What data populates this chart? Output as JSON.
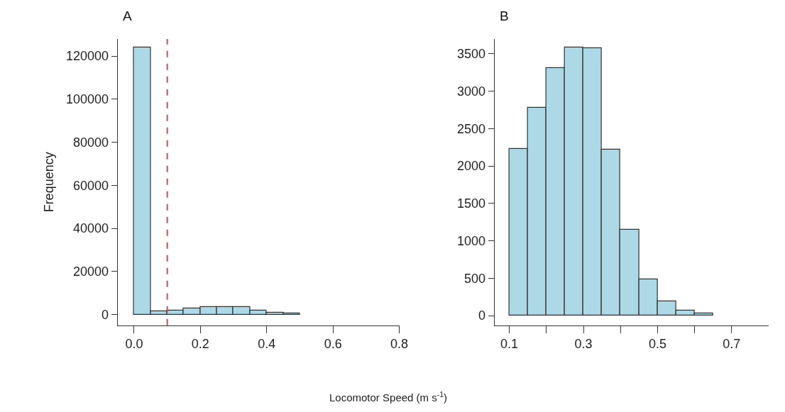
{
  "chart_data": [
    {
      "type": "histogram",
      "title": "A",
      "ylabel": "Frequency",
      "bins": [
        0,
        0.05,
        0.1,
        0.15,
        0.2,
        0.25,
        0.3,
        0.35,
        0.4,
        0.45,
        0.5
      ],
      "values": [
        124000,
        1500,
        2000,
        3000,
        3500,
        3500,
        3500,
        2000,
        1000,
        500
      ],
      "color": "#add8e6",
      "xlim": [
        -0.05,
        0.8
      ],
      "xticks": [
        {
          "value": 0,
          "label": "0.0"
        },
        0.2,
        0.4,
        0.6,
        0.8
      ],
      "ylim": [
        -5000,
        128000
      ],
      "yticks": [
        0,
        20000,
        40000,
        60000,
        80000,
        100000,
        120000
      ],
      "ref_lines": [
        {
          "axis": "x",
          "value": 0.1,
          "color": "#c0506a",
          "line_style": "dashed"
        }
      ]
    },
    {
      "type": "histogram",
      "title": "B",
      "xlabel": "Locomotor Speed (m s$^{-1}$)",
      "bins": [
        0.1,
        0.15,
        0.2,
        0.25,
        0.3,
        0.35,
        0.4,
        0.45,
        0.5,
        0.55,
        0.6,
        0.65
      ],
      "values": [
        2230,
        2780,
        3310,
        3590,
        3580,
        2220,
        1150,
        490,
        190,
        70,
        30
      ],
      "color": "#add8e6",
      "xlim": [
        0.06,
        0.8
      ],
      "xticks": [
        0.1,
        {
          "value": 0.2,
          "label": null
        },
        0.3,
        {
          "value": 0.4,
          "label": null
        },
        0.5,
        {
          "value": 0.6,
          "label": null
        },
        0.7
      ],
      "ylim": [
        -130,
        3700
      ],
      "yticks": [
        0,
        500,
        1000,
        1500,
        2000,
        2500,
        3000,
        3500
      ]
    }
  ]
}
